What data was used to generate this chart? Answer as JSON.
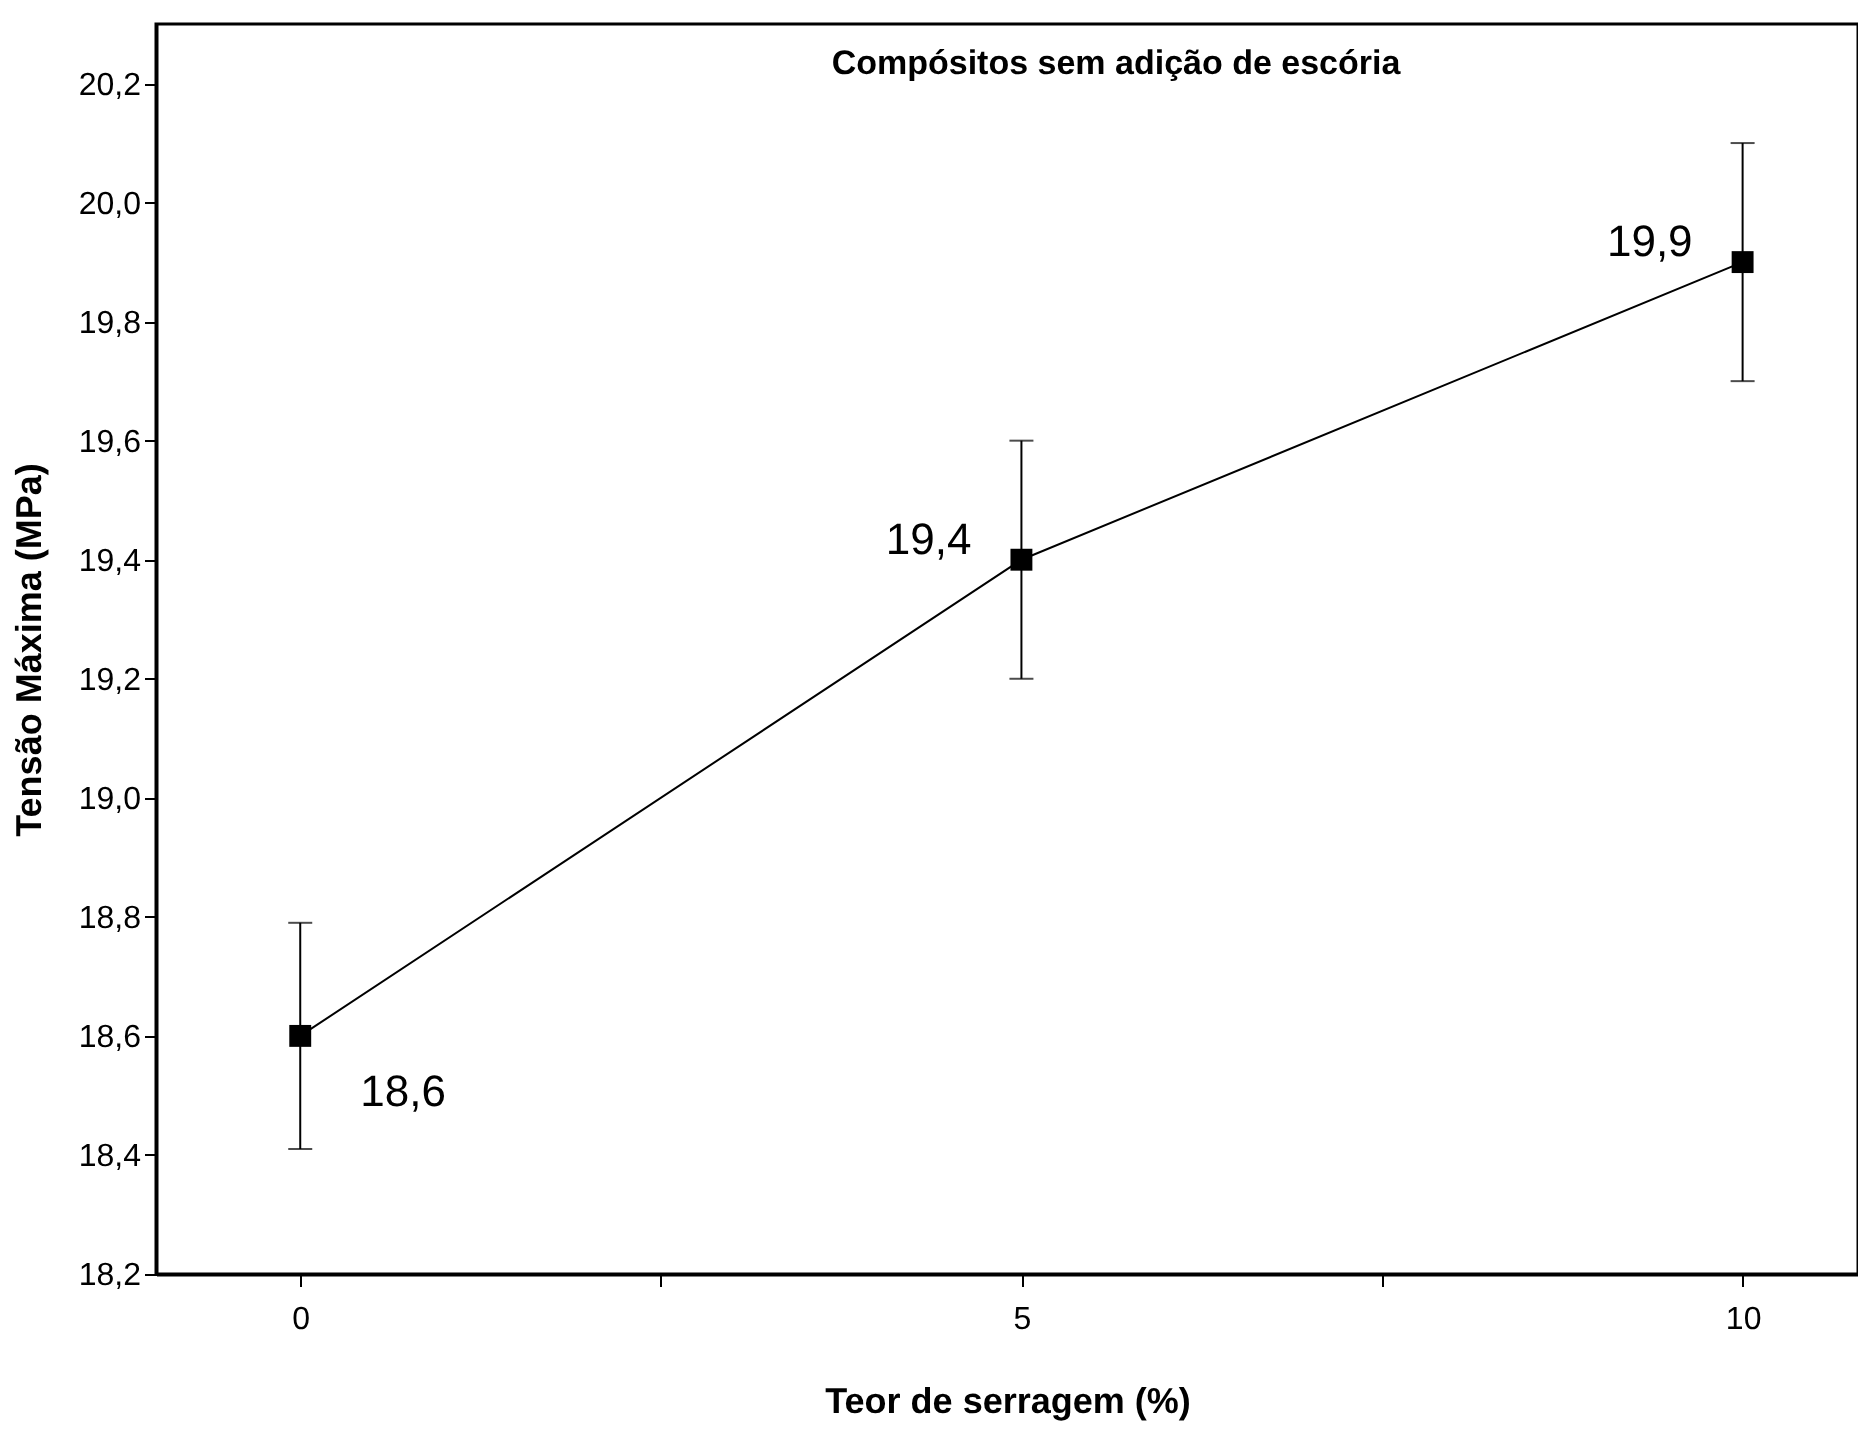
{
  "chart_data": {
    "type": "line",
    "title": "Compósitos sem adição de escória",
    "xlabel": "Teor de serragem (%)",
    "ylabel": "Tensão Máxima (MPa)",
    "x": [
      0,
      5,
      10
    ],
    "series": [
      {
        "color": "#000000",
        "values": [
          18.6,
          19.4,
          19.9
        ],
        "errors": [
          0.19,
          0.2,
          0.2
        ],
        "value_labels": [
          "18,6",
          "19,4",
          "19,9"
        ]
      }
    ],
    "xlim": [
      -1,
      10.8
    ],
    "xticks": [
      0,
      {
        "value": 2.5,
        "label": null
      },
      5,
      {
        "value": 7.5,
        "label": null
      },
      10
    ],
    "ylim": [
      18.2,
      20.3
    ],
    "yticks": [
      {
        "value": 18.2,
        "label": "18,2"
      },
      {
        "value": 18.4,
        "label": "18,4"
      },
      {
        "value": 18.6,
        "label": "18,6"
      },
      {
        "value": 18.8,
        "label": "18,8"
      },
      {
        "value": 19.0,
        "label": "19,0"
      },
      {
        "value": 19.2,
        "label": "19,2"
      },
      {
        "value": 19.4,
        "label": "19,4"
      },
      {
        "value": 19.6,
        "label": "19,6"
      },
      {
        "value": 19.8,
        "label": "19,8"
      },
      {
        "value": 20.0,
        "label": "20,0"
      },
      {
        "value": 20.2,
        "label": "20,2"
      }
    ],
    "marker": "square",
    "line_style": "solid",
    "grid": false
  }
}
